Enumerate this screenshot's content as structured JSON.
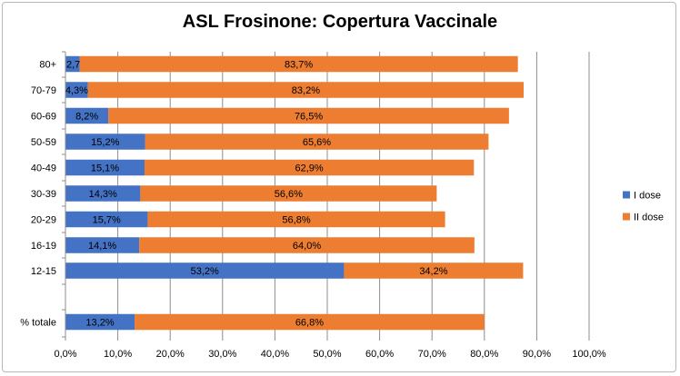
{
  "chart_data": {
    "type": "bar",
    "orientation": "horizontal",
    "stacked": true,
    "title": "ASL Frosinone: Copertura Vaccinale",
    "categories": [
      "80+",
      "70-79",
      "60-69",
      "50-59",
      "40-49",
      "30-39",
      "20-29",
      "16-19",
      "12-15",
      "% totale"
    ],
    "series": [
      {
        "name": "I dose",
        "values": [
          2.7,
          4.3,
          8.2,
          15.2,
          15.1,
          14.3,
          15.7,
          14.1,
          53.2,
          13.2
        ],
        "labels": [
          "2,7%",
          "4,3%",
          "8,2%",
          "15,2%",
          "15,1%",
          "14,3%",
          "15,7%",
          "14,1%",
          "53,2%",
          "13,2%"
        ],
        "color": "#4472c4"
      },
      {
        "name": "II dose",
        "values": [
          83.7,
          83.2,
          76.5,
          65.6,
          62.9,
          56.6,
          56.8,
          64.0,
          34.2,
          66.8
        ],
        "labels": [
          "83,7%",
          "83,2%",
          "76,5%",
          "65,6%",
          "62,9%",
          "56,6%",
          "56,8%",
          "64,0%",
          "34,2%",
          "66,8%"
        ],
        "color": "#ed7d31"
      }
    ],
    "xlim": [
      0,
      100
    ],
    "xticks": [
      "0,0%",
      "10,0%",
      "20,0%",
      "30,0%",
      "40,0%",
      "50,0%",
      "60,0%",
      "70,0%",
      "80,0%",
      "90,0%",
      "100,0%"
    ],
    "grid": true,
    "legend": "right"
  }
}
